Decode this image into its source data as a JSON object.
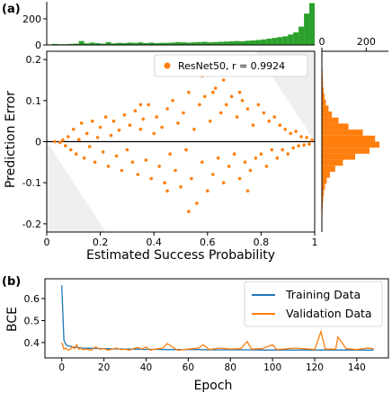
{
  "chart_data": [
    {
      "panel": "(a)",
      "type": "scatter",
      "xlabel": "Estimated Success Probability",
      "ylabel": "Prediction Error",
      "xlim": [
        0,
        1
      ],
      "ylim": [
        -0.22,
        0.22
      ],
      "xticks": [
        "0",
        "0.2",
        "0.4",
        "0.6",
        "0.8",
        "1"
      ],
      "yticks": [
        "-0.2",
        "-0.1",
        "0",
        "0.1",
        "0.2"
      ],
      "legend": {
        "label": "ResNet50, r = 0.9924",
        "placement": "top-right"
      },
      "series": [
        {
          "name": "ResNet50, r = 0.9924",
          "color": "#ff7f0e",
          "points": [
            [
              0.03,
              0.0
            ],
            [
              0.05,
              -0.002
            ],
            [
              0.06,
              0.004
            ],
            [
              0.07,
              -0.01
            ],
            [
              0.08,
              0.012
            ],
            [
              0.09,
              -0.02
            ],
            [
              0.1,
              0.03
            ],
            [
              0.11,
              -0.03
            ],
            [
              0.12,
              0.005
            ],
            [
              0.13,
              0.045
            ],
            [
              0.14,
              -0.04
            ],
            [
              0.15,
              0.02
            ],
            [
              0.16,
              -0.012
            ],
            [
              0.17,
              0.05
            ],
            [
              0.18,
              -0.05
            ],
            [
              0.19,
              0.01
            ],
            [
              0.2,
              0.035
            ],
            [
              0.21,
              -0.025
            ],
            [
              0.22,
              0.06
            ],
            [
              0.23,
              -0.06
            ],
            [
              0.24,
              0.015
            ],
            [
              0.25,
              0.05
            ],
            [
              0.26,
              -0.035
            ],
            [
              0.27,
              0.028
            ],
            [
              0.28,
              -0.07
            ],
            [
              0.29,
              0.065
            ],
            [
              0.3,
              -0.02
            ],
            [
              0.31,
              0.04
            ],
            [
              0.32,
              -0.05
            ],
            [
              0.33,
              0.075
            ],
            [
              0.34,
              -0.08
            ],
            [
              0.35,
              0.03
            ],
            [
              0.36,
              0.055
            ],
            [
              0.37,
              -0.045
            ],
            [
              0.38,
              0.09
            ],
            [
              0.39,
              -0.09
            ],
            [
              0.4,
              0.02
            ],
            [
              0.41,
              0.06
            ],
            [
              0.42,
              -0.06
            ],
            [
              0.43,
              0.035
            ],
            [
              0.44,
              -0.1
            ],
            [
              0.45,
              0.08
            ],
            [
              0.46,
              -0.03
            ],
            [
              0.47,
              0.1
            ],
            [
              0.48,
              -0.07
            ],
            [
              0.49,
              0.045
            ],
            [
              0.5,
              -0.11
            ],
            [
              0.51,
              0.07
            ],
            [
              0.52,
              -0.02
            ],
            [
              0.53,
              0.12
            ],
            [
              0.54,
              -0.09
            ],
            [
              0.55,
              0.03
            ],
            [
              0.56,
              -0.15
            ],
            [
              0.57,
              0.09
            ],
            [
              0.58,
              -0.05
            ],
            [
              0.59,
              0.11
            ],
            [
              0.6,
              -0.12
            ],
            [
              0.61,
              0.05
            ],
            [
              0.62,
              -0.08
            ],
            [
              0.63,
              0.13
            ],
            [
              0.64,
              -0.04
            ],
            [
              0.65,
              0.07
            ],
            [
              0.66,
              -0.1
            ],
            [
              0.67,
              0.09
            ],
            [
              0.68,
              -0.06
            ],
            [
              0.69,
              0.11
            ],
            [
              0.7,
              -0.03
            ],
            [
              0.71,
              0.06
            ],
            [
              0.72,
              -0.09
            ],
            [
              0.73,
              0.1
            ],
            [
              0.74,
              -0.05
            ],
            [
              0.75,
              0.08
            ],
            [
              0.76,
              -0.07
            ],
            [
              0.77,
              0.04
            ],
            [
              0.78,
              -0.04
            ],
            [
              0.79,
              0.09
            ],
            [
              0.8,
              -0.03
            ],
            [
              0.81,
              0.07
            ],
            [
              0.82,
              -0.06
            ],
            [
              0.83,
              0.05
            ],
            [
              0.84,
              -0.02
            ],
            [
              0.85,
              0.06
            ],
            [
              0.86,
              -0.04
            ],
            [
              0.87,
              0.04
            ],
            [
              0.88,
              -0.02
            ],
            [
              0.89,
              0.03
            ],
            [
              0.9,
              -0.03
            ],
            [
              0.91,
              0.02
            ],
            [
              0.92,
              -0.015
            ],
            [
              0.93,
              0.025
            ],
            [
              0.94,
              -0.01
            ],
            [
              0.95,
              0.012
            ],
            [
              0.96,
              -0.008
            ],
            [
              0.97,
              0.01
            ],
            [
              0.98,
              -0.006
            ],
            [
              0.99,
              0.004
            ],
            [
              0.58,
              0.16
            ],
            [
              0.53,
              -0.17
            ],
            [
              0.66,
              0.15
            ],
            [
              0.45,
              -0.12
            ],
            [
              0.62,
              0.12
            ],
            [
              0.35,
              0.09
            ],
            [
              0.72,
              0.12
            ],
            [
              0.75,
              -0.12
            ]
          ]
        }
      ],
      "regions": [
        "lower-left shaded wedge",
        "upper-right shaded wedge"
      ],
      "top_histogram": {
        "type": "bar",
        "color": "#2ca02c",
        "ylim": [
          0,
          330
        ],
        "yticks": [
          "0",
          "200"
        ],
        "bins": 50,
        "counts": [
          4,
          8,
          6,
          6,
          8,
          10,
          30,
          12,
          18,
          14,
          10,
          22,
          12,
          16,
          14,
          18,
          16,
          20,
          14,
          18,
          14,
          16,
          16,
          18,
          22,
          20,
          18,
          20,
          22,
          24,
          20,
          22,
          24,
          26,
          28,
          30,
          28,
          32,
          34,
          38,
          42,
          48,
          54,
          60,
          66,
          80,
          96,
          140,
          240,
          320
        ]
      },
      "right_histogram": {
        "type": "bar",
        "orientation": "horizontal",
        "color": "#ff7f0e",
        "xlim": [
          0,
          300
        ],
        "xticks": [
          "0",
          "200"
        ],
        "bins": 30,
        "counts_from_bottom": [
          1,
          1,
          2,
          3,
          4,
          6,
          9,
          14,
          22,
          36,
          60,
          95,
          150,
          215,
          260,
          240,
          185,
          120,
          75,
          45,
          30,
          18,
          12,
          8,
          5,
          4,
          3,
          2,
          1,
          1
        ]
      }
    },
    {
      "panel": "(b)",
      "type": "line",
      "xlabel": "Epoch",
      "ylabel": "BCE",
      "xlim": [
        -8,
        155
      ],
      "ylim": [
        0.33,
        0.69
      ],
      "xticks": [
        "0",
        "20",
        "40",
        "60",
        "80",
        "100",
        "120",
        "140"
      ],
      "yticks": [
        "0.4",
        "0.5",
        "0.6"
      ],
      "legend": {
        "placement": "top-right"
      },
      "series": [
        {
          "name": "Training Data",
          "color": "#1f77b4",
          "x": [
            0,
            1,
            2,
            3,
            4,
            5,
            6,
            7,
            8,
            9,
            10,
            12,
            14,
            16,
            18,
            20,
            22,
            24,
            26,
            28,
            30,
            32,
            34,
            36,
            38,
            40,
            42,
            44,
            46,
            48,
            50,
            55,
            60,
            65,
            70,
            75,
            80,
            85,
            90,
            95,
            100,
            105,
            110,
            115,
            120,
            123,
            125,
            130,
            135,
            140,
            145,
            148
          ],
          "y": [
            0.66,
            0.41,
            0.39,
            0.385,
            0.383,
            0.38,
            0.379,
            0.378,
            0.377,
            0.376,
            0.375,
            0.374,
            0.374,
            0.373,
            0.373,
            0.372,
            0.372,
            0.371,
            0.371,
            0.371,
            0.37,
            0.37,
            0.37,
            0.37,
            0.369,
            0.369,
            0.369,
            0.369,
            0.369,
            0.368,
            0.368,
            0.368,
            0.368,
            0.368,
            0.367,
            0.367,
            0.367,
            0.367,
            0.367,
            0.366,
            0.366,
            0.366,
            0.366,
            0.366,
            0.366,
            0.366,
            0.366,
            0.366,
            0.366,
            0.366,
            0.366,
            0.366
          ]
        },
        {
          "name": "Validation Data",
          "color": "#ff7f0e",
          "x": [
            0,
            1,
            2,
            3,
            4,
            5,
            6,
            7,
            8,
            9,
            10,
            12,
            14,
            16,
            18,
            20,
            22,
            24,
            26,
            28,
            30,
            32,
            34,
            36,
            38,
            40,
            42,
            44,
            46,
            48,
            50,
            55,
            60,
            65,
            67,
            70,
            75,
            80,
            85,
            88,
            90,
            95,
            100,
            102,
            105,
            110,
            115,
            120,
            123,
            125,
            130,
            131,
            135,
            140,
            145,
            148
          ],
          "y": [
            0.4,
            0.37,
            0.375,
            0.365,
            0.37,
            0.38,
            0.372,
            0.39,
            0.37,
            0.375,
            0.368,
            0.37,
            0.365,
            0.38,
            0.37,
            0.372,
            0.365,
            0.37,
            0.375,
            0.368,
            0.37,
            0.365,
            0.372,
            0.378,
            0.37,
            0.38,
            0.365,
            0.37,
            0.372,
            0.375,
            0.395,
            0.365,
            0.37,
            0.375,
            0.39,
            0.368,
            0.375,
            0.37,
            0.372,
            0.405,
            0.37,
            0.372,
            0.39,
            0.368,
            0.37,
            0.375,
            0.372,
            0.368,
            0.45,
            0.37,
            0.37,
            0.425,
            0.372,
            0.368,
            0.375,
            0.372
          ]
        }
      ]
    }
  ],
  "panel_labels": {
    "a": "(a)",
    "b": "(b)"
  }
}
